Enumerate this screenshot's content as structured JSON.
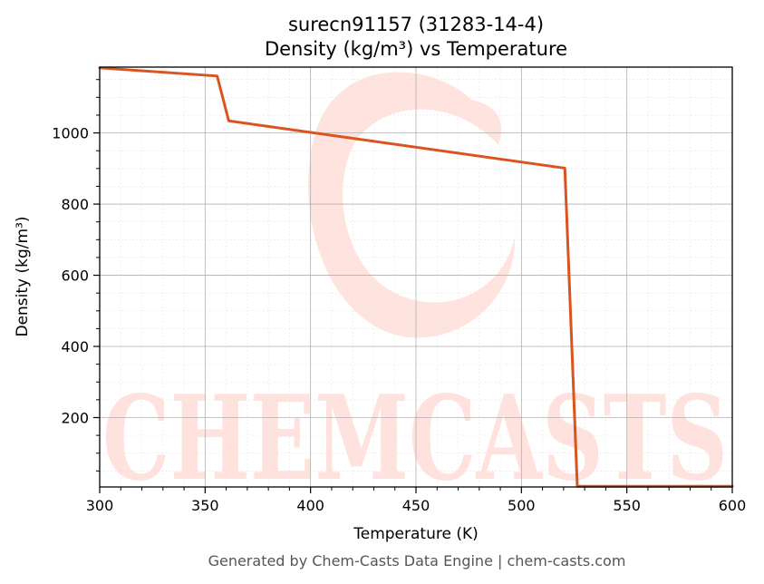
{
  "chart_data": {
    "type": "line",
    "title_line1": "surecn91157 (31283-14-4)",
    "title_line2": "Density (kg/m³) vs Temperature",
    "xlabel": "Temperature (K)",
    "ylabel": "Density (kg/m³)",
    "xlim": [
      300,
      600
    ],
    "ylim": [
      5,
      1185
    ],
    "xticks": [
      300,
      350,
      400,
      450,
      500,
      550,
      600
    ],
    "yticks": [
      200,
      400,
      600,
      800,
      1000
    ],
    "grid": true,
    "series": [
      {
        "color": "#d9541e",
        "x": [
          300,
          355.7,
          361.2,
          520.6,
          526.5,
          600
        ],
        "y": [
          1183,
          1160,
          1034,
          901,
          7,
          7
        ]
      }
    ]
  },
  "watermark": {
    "text": "CHEMCASTS",
    "color": "#ffded8"
  },
  "footer": "Generated by Chem-Casts Data Engine | chem-casts.com"
}
